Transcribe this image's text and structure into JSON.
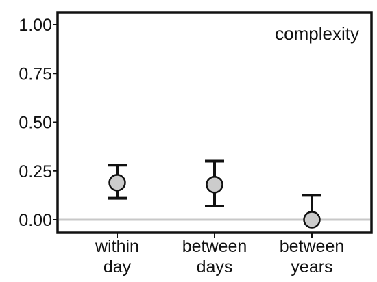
{
  "chart_data": {
    "type": "scatter",
    "title": "complexity",
    "xlabel": "",
    "ylabel": "",
    "ylim": [
      0,
      1
    ],
    "yticks": [
      "0.00",
      "0.25",
      "0.50",
      "0.75",
      "1.00"
    ],
    "categories": [
      [
        "within",
        "day"
      ],
      [
        "between",
        "days"
      ],
      [
        "between",
        "years"
      ]
    ],
    "points": [
      {
        "y": 0.19,
        "lower": 0.11,
        "upper": 0.28
      },
      {
        "y": 0.18,
        "lower": 0.07,
        "upper": 0.3
      },
      {
        "y": 0.0,
        "lower": 0.0,
        "upper": 0.125
      }
    ],
    "reference_line": 0,
    "grid": false,
    "colors": {
      "marker_fill": "#cccccc",
      "marker_stroke": "#111111",
      "errorbar": "#111111",
      "reference_line": "#c8c8c8",
      "frame": "#111111"
    }
  }
}
